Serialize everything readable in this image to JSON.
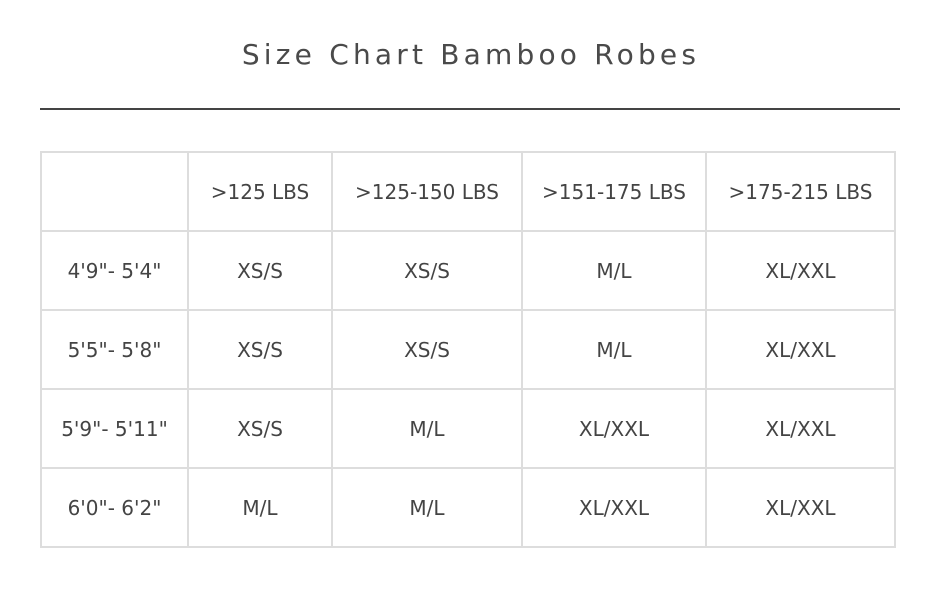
{
  "title": "Size Chart Bamboo Robes",
  "table": {
    "headers": [
      "",
      ">125 LBS",
      ">125-150 LBS",
      ">151-175 LBS",
      ">175-215 LBS"
    ],
    "rows": [
      [
        "4'9\"- 5'4\"",
        "XS/S",
        "XS/S",
        "M/L",
        "XL/XXL"
      ],
      [
        "5'5\"- 5'8\"",
        "XS/S",
        "XS/S",
        "M/L",
        "XL/XXL"
      ],
      [
        "5'9\"- 5'11\"",
        "XS/S",
        "M/L",
        "XL/XXL",
        "XL/XXL"
      ],
      [
        "6'0\"- 6'2\"",
        "M/L",
        "M/L",
        "XL/XXL",
        "XL/XXL"
      ]
    ]
  }
}
